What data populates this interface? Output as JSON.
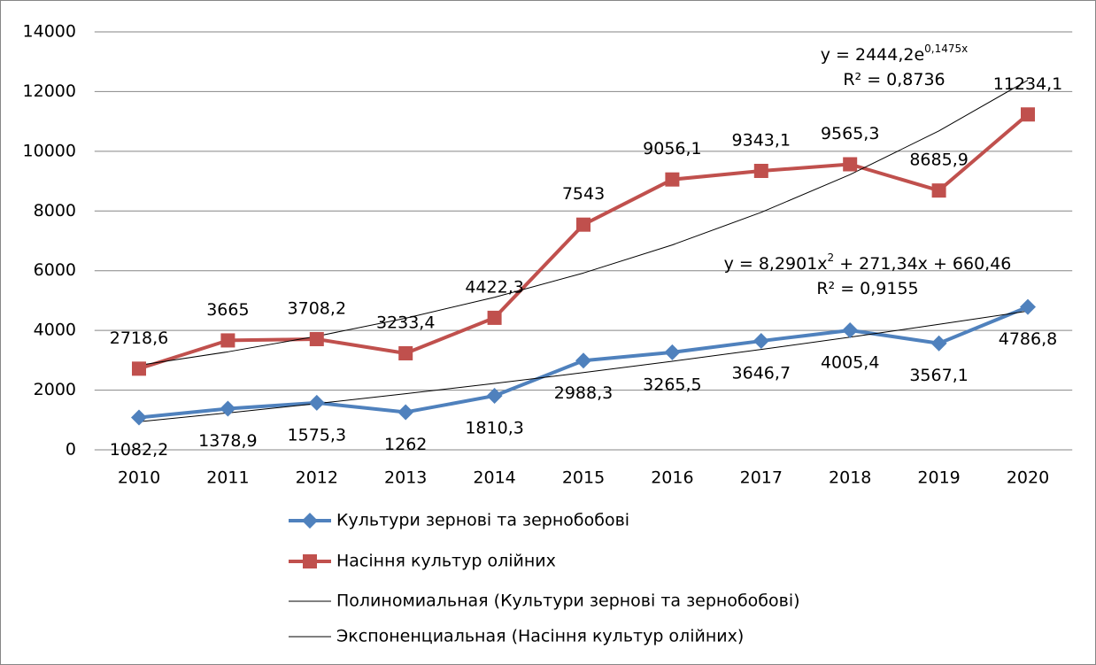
{
  "chart_data": {
    "type": "line",
    "categories": [
      "2010",
      "2011",
      "2012",
      "2013",
      "2014",
      "2015",
      "2016",
      "2017",
      "2018",
      "2019",
      "2020"
    ],
    "series": [
      {
        "name": "Культури зернові та зернобобові",
        "color": "#4f81bd",
        "marker": "diamond",
        "label_side": "below",
        "values": [
          1082.2,
          1378.9,
          1575.3,
          1262,
          1810.3,
          2988.3,
          3265.5,
          3646.7,
          4005.4,
          3567.1,
          4786.8
        ],
        "value_labels": [
          "1082,2",
          "1378,9",
          "1575,3",
          "1262",
          "1810,3",
          "2988,3",
          "3265,5",
          "3646,7",
          "4005,4",
          "3567,1",
          "4786,8"
        ]
      },
      {
        "name": "Насіння культур олійних",
        "color": "#c0504d",
        "marker": "square",
        "label_side": "above",
        "values": [
          2718.6,
          3665,
          3708.2,
          3233.4,
          4422.3,
          7543,
          9056.1,
          9343.1,
          9565.3,
          8685.9,
          11234.1
        ],
        "value_labels": [
          "2718,6",
          "3665",
          "3708,2",
          "3233,4",
          "4422,3",
          "7543",
          "9056,1",
          "9343,1",
          "9565,3",
          "8685,9",
          "11234,1"
        ]
      },
      {
        "name": "Полиномиальная (Культури зернові та зернобобові)",
        "color": "#000000",
        "marker": "none",
        "trendline": true,
        "values": [
          940.1,
          1236.3,
          1549.1,
          1878.5,
          2224.4,
          2586.9,
          2966.1,
          3361.8,
          3774.0,
          4202.9,
          4648.3
        ]
      },
      {
        "name": "Экспоненциальная (Насіння культур олійних)",
        "color": "#000000",
        "marker": "none",
        "trendline": true,
        "values": [
          2832.7,
          3282.9,
          3804.6,
          4409.3,
          5110.1,
          5922.3,
          6863.5,
          7954.3,
          9218.6,
          10683.6,
          12381.6
        ]
      }
    ],
    "annotations": [
      {
        "parts": [
          {
            "text": "y = 2444,2e",
            "sup": false
          },
          {
            "text": "0,1475x",
            "sup": true
          }
        ]
      },
      {
        "parts": [
          {
            "text": "R² = 0,8736",
            "sup": false
          }
        ]
      },
      {
        "parts": [
          {
            "text": "y = 8,2901x",
            "sup": false
          },
          {
            "text": "2",
            "sup": true
          },
          {
            "text": " + 271,34x + 660,46",
            "sup": false
          }
        ]
      },
      {
        "parts": [
          {
            "text": "R² = 0,9155",
            "sup": false
          }
        ]
      }
    ],
    "ylim": [
      0,
      14000
    ],
    "yticks": [
      0,
      2000,
      4000,
      6000,
      8000,
      10000,
      12000,
      14000
    ],
    "grid": true,
    "legend": "bottom"
  }
}
